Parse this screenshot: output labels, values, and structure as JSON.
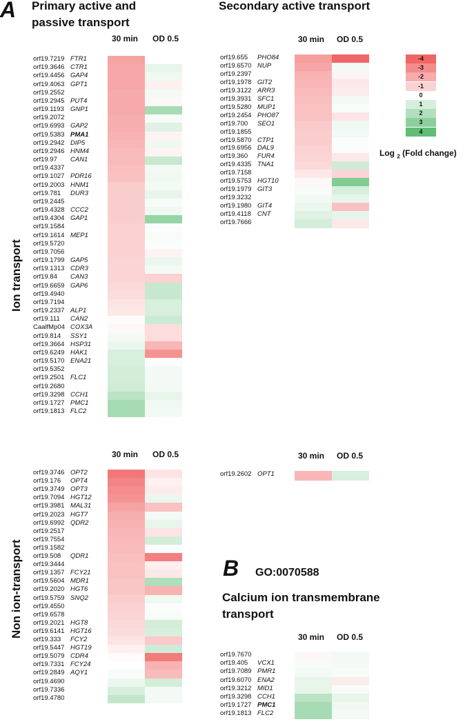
{
  "panel_a_letter": "A",
  "panel_b_letter": "B",
  "title_primary": [
    "Primary active and",
    "passive transport"
  ],
  "title_secondary": "Secondary active transport",
  "go_term": "GO:0070588",
  "title_b": [
    "Calcium ion transmembrane",
    "transport"
  ],
  "side_label_ion": "Ion transport",
  "side_label_nonion": "Non ion-transport",
  "col_30min": "30 min",
  "col_od": "OD 0.5",
  "legend": {
    "title_prefix": "Log",
    "title_sub": "2",
    "title_suffix": "(Fold change)",
    "values": [
      -4,
      -3,
      -2,
      -1,
      0,
      1,
      2,
      3,
      4
    ],
    "colors": [
      "#f06565",
      "#f48c8c",
      "#f7abab",
      "#fbd2d2",
      "#ffffff",
      "#d6eedc",
      "#b2dfbc",
      "#8ccf9a",
      "#5fbd75"
    ]
  },
  "chart_data": [
    {
      "type": "heatmap",
      "title": "Primary active and passive transport",
      "group": "Ion transport",
      "columns": [
        "30 min",
        "OD 0.5"
      ],
      "rows": [
        {
          "orf": "orf19.7219",
          "gene": "FTR1",
          "values": [
            -2.4,
            0.0
          ]
        },
        {
          "orf": "orf19.3646",
          "gene": "CTR1",
          "values": [
            -2.3,
            0.6
          ]
        },
        {
          "orf": "orf19.4456",
          "gene": "GAP4",
          "values": [
            -2.3,
            0.4
          ]
        },
        {
          "orf": "orf19.4063",
          "gene": "GPT1",
          "values": [
            -2.3,
            -0.4
          ]
        },
        {
          "orf": "orf19.2552",
          "gene": "",
          "values": [
            -2.2,
            0.3
          ]
        },
        {
          "orf": "orf19.2945",
          "gene": "PUT4",
          "values": [
            -2.2,
            -0.2
          ]
        },
        {
          "orf": "orf19.1193",
          "gene": "GNP1",
          "values": [
            -2.2,
            2.2
          ]
        },
        {
          "orf": "orf19.2072",
          "gene": "",
          "values": [
            -2.1,
            0.2
          ]
        },
        {
          "orf": "orf19.6993",
          "gene": "GAP2",
          "values": [
            -2.1,
            0.8
          ]
        },
        {
          "orf": "orf19.5383",
          "gene": "PMA1",
          "bold": true,
          "values": [
            -2.0,
            -0.3
          ]
        },
        {
          "orf": "orf19.2942",
          "gene": "DIP5",
          "values": [
            -1.9,
            0.4
          ]
        },
        {
          "orf": "orf19.2946",
          "gene": "HNM4",
          "values": [
            -1.8,
            -0.3
          ]
        },
        {
          "orf": "orf19.97",
          "gene": "CAN1",
          "values": [
            -1.8,
            1.4
          ]
        },
        {
          "orf": "orf19.4337",
          "gene": "",
          "values": [
            -1.7,
            0.3
          ]
        },
        {
          "orf": "orf19.1027",
          "gene": "PDR16",
          "values": [
            -1.6,
            0.4
          ]
        },
        {
          "orf": "orf19.2003",
          "gene": "HNM1",
          "values": [
            -1.3,
            0.3
          ]
        },
        {
          "orf": "orf19.781",
          "gene": "DUR3",
          "values": [
            -1.3,
            0.6
          ]
        },
        {
          "orf": "orf19.2445",
          "gene": "",
          "values": [
            -1.3,
            0.2
          ]
        },
        {
          "orf": "orf19.4328",
          "gene": "CCC2",
          "values": [
            -1.3,
            0.4
          ]
        },
        {
          "orf": "orf19.4304",
          "gene": "GAP1",
          "values": [
            -1.3,
            2.6
          ]
        },
        {
          "orf": "orf19.1584",
          "gene": "",
          "values": [
            -1.2,
            0.1
          ]
        },
        {
          "orf": "orf19.1614",
          "gene": "MEP1",
          "values": [
            -1.2,
            0.2
          ]
        },
        {
          "orf": "orf19.5720",
          "gene": "",
          "values": [
            -1.2,
            0.1
          ]
        },
        {
          "orf": "orf19.7056",
          "gene": "",
          "values": [
            -1.2,
            -0.3
          ]
        },
        {
          "orf": "orf19.1799",
          "gene": "GAP5",
          "values": [
            -1.1,
            0.5
          ]
        },
        {
          "orf": "orf19.1313",
          "gene": "CDR3",
          "values": [
            -1.1,
            0.3
          ]
        },
        {
          "orf": "orf19.84",
          "gene": "CAN3",
          "values": [
            -1.1,
            -1.2
          ]
        },
        {
          "orf": "orf19.6659",
          "gene": "GAP6",
          "values": [
            -1.0,
            1.4
          ]
        },
        {
          "orf": "orf19.4940",
          "gene": "",
          "values": [
            -0.9,
            1.4
          ]
        },
        {
          "orf": "orf19.7194",
          "gene": "",
          "values": [
            -0.7,
            1.0
          ]
        },
        {
          "orf": "orf19.2337",
          "gene": "ALP1",
          "values": [
            -0.6,
            1.0
          ]
        },
        {
          "orf": "orf19.111",
          "gene": "CAN2",
          "values": [
            -0.1,
            1.3
          ]
        },
        {
          "orf": "CaalfMp04",
          "gene": "COX3A",
          "values": [
            -0.2,
            -0.9
          ]
        },
        {
          "orf": "orf19.814",
          "gene": "SSY1",
          "values": [
            0.3,
            -0.9
          ]
        },
        {
          "orf": "orf19.3664",
          "gene": "HSP31",
          "values": [
            0.5,
            -1.9
          ]
        },
        {
          "orf": "orf19.6249",
          "gene": "HAK1",
          "values": [
            1.0,
            -2.8
          ]
        },
        {
          "orf": "orf19.5170",
          "gene": "ENA21",
          "values": [
            1.0,
            0.1
          ]
        },
        {
          "orf": "orf19.5352",
          "gene": "",
          "values": [
            1.1,
            0.3
          ]
        },
        {
          "orf": "orf19.2501",
          "gene": "FLC1",
          "values": [
            1.1,
            0.3
          ]
        },
        {
          "orf": "orf19.2680",
          "gene": "",
          "values": [
            1.2,
            0.3
          ]
        },
        {
          "orf": "orf19.3298",
          "gene": "CCH1",
          "values": [
            1.7,
            0.6
          ]
        },
        {
          "orf": "orf19.1727",
          "gene": "PMC1",
          "values": [
            2.2,
            0.4
          ]
        },
        {
          "orf": "orf19.1813",
          "gene": "FLC2",
          "values": [
            2.2,
            0.3
          ]
        }
      ]
    },
    {
      "type": "heatmap",
      "title": "Secondary active transport",
      "group": "Ion transport",
      "columns": [
        "30 min",
        "OD 0.5"
      ],
      "rows": [
        {
          "orf": "orf19.655",
          "gene": "PHO84",
          "values": [
            -2.5,
            -4.0
          ]
        },
        {
          "orf": "orf19.6570",
          "gene": "NUP",
          "values": [
            -2.3,
            0.3
          ]
        },
        {
          "orf": "orf19.2397",
          "gene": "",
          "values": [
            -2.0,
            -0.3
          ]
        },
        {
          "orf": "orf19.1978",
          "gene": "GIT2",
          "values": [
            -1.9,
            -0.6
          ]
        },
        {
          "orf": "orf19.3122",
          "gene": "ARR3",
          "values": [
            -1.8,
            -0.5
          ]
        },
        {
          "orf": "orf19.3931",
          "gene": "SFC1",
          "values": [
            -1.7,
            0.3
          ]
        },
        {
          "orf": "orf19.5280",
          "gene": "MUP1",
          "values": [
            -1.6,
            0.2
          ]
        },
        {
          "orf": "orf19.2454",
          "gene": "PHO87",
          "values": [
            -1.6,
            -0.7
          ]
        },
        {
          "orf": "orf19.700",
          "gene": "SEO1",
          "values": [
            -1.4,
            0.4
          ]
        },
        {
          "orf": "orf19.1855",
          "gene": "",
          "values": [
            -1.3,
            0.3
          ]
        },
        {
          "orf": "orf19.5870",
          "gene": "CTP1",
          "values": [
            -1.3,
            0.1
          ]
        },
        {
          "orf": "orf19.6956",
          "gene": "DAL9",
          "values": [
            -1.2,
            0.1
          ]
        },
        {
          "orf": "orf19.360",
          "gene": "FUR4",
          "values": [
            -1.1,
            -0.6
          ]
        },
        {
          "orf": "orf19.4335",
          "gene": "TNA1",
          "values": [
            -1.0,
            1.2
          ]
        },
        {
          "orf": "orf19.7158",
          "gene": "",
          "values": [
            -0.6,
            -1.1
          ]
        },
        {
          "orf": "orf19.5753",
          "gene": "HGT10",
          "values": [
            -0.2,
            3.1
          ]
        },
        {
          "orf": "orf19.1979",
          "gene": "GIT3",
          "values": [
            0.2,
            1.0
          ]
        },
        {
          "orf": "orf19.3232",
          "gene": "",
          "values": [
            0.3,
            0.6
          ]
        },
        {
          "orf": "orf19.1980",
          "gene": "GIT4",
          "values": [
            0.5,
            -1.6
          ]
        },
        {
          "orf": "orf19.4118",
          "gene": "CNT",
          "values": [
            0.8,
            0.6
          ]
        },
        {
          "orf": "orf19.7666",
          "gene": "",
          "values": [
            1.1,
            -0.6
          ]
        }
      ]
    },
    {
      "type": "heatmap",
      "title": "Primary active and passive transport",
      "group": "Non ion-transport",
      "columns": [
        "30 min",
        "OD 0.5"
      ],
      "rows": [
        {
          "orf": "orf19.3746",
          "gene": "OPT2",
          "values": [
            -3.5,
            -0.7
          ]
        },
        {
          "orf": "orf19.176",
          "gene": "OPT4",
          "values": [
            -3.2,
            -0.4
          ]
        },
        {
          "orf": "orf19.3749",
          "gene": "OPT3",
          "values": [
            -3.0,
            -0.5
          ]
        },
        {
          "orf": "orf19.7094",
          "gene": "HGT12",
          "values": [
            -2.8,
            0.5
          ]
        },
        {
          "orf": "orf19.3981",
          "gene": "MAL31",
          "values": [
            -2.4,
            -1.6
          ]
        },
        {
          "orf": "orf19.2023",
          "gene": "HGT7",
          "values": [
            -2.1,
            0.3
          ]
        },
        {
          "orf": "orf19.6992",
          "gene": "QDR2",
          "values": [
            -2.0,
            0.6
          ]
        },
        {
          "orf": "orf19.2517",
          "gene": "",
          "values": [
            -1.9,
            -0.7
          ]
        },
        {
          "orf": "orf19.7554",
          "gene": "",
          "values": [
            -1.8,
            1.1
          ]
        },
        {
          "orf": "orf19.1582",
          "gene": "",
          "values": [
            -1.8,
            0.1
          ]
        },
        {
          "orf": "orf19.508",
          "gene": "QDR1",
          "values": [
            -1.7,
            -3.3
          ]
        },
        {
          "orf": "orf19.3444",
          "gene": "",
          "values": [
            -1.6,
            -0.4
          ]
        },
        {
          "orf": "orf19.1357",
          "gene": "FCY21",
          "values": [
            -1.6,
            -0.6
          ]
        },
        {
          "orf": "orf19.5604",
          "gene": "MDR1",
          "values": [
            -1.5,
            2.0
          ]
        },
        {
          "orf": "orf19.2020",
          "gene": "HGT6",
          "values": [
            -1.5,
            -2.0
          ]
        },
        {
          "orf": "orf19.5759",
          "gene": "SNQ2",
          "values": [
            -1.3,
            0.4
          ]
        },
        {
          "orf": "orf19.4550",
          "gene": "",
          "values": [
            -1.2,
            0.1
          ]
        },
        {
          "orf": "orf19.6578",
          "gene": "",
          "values": [
            -1.1,
            0.2
          ]
        },
        {
          "orf": "orf19.2021",
          "gene": "HGT8",
          "values": [
            -1.0,
            1.1
          ]
        },
        {
          "orf": "orf19.6141",
          "gene": "HGT16",
          "values": [
            -0.9,
            1.0
          ]
        },
        {
          "orf": "orf19.333",
          "gene": "FCY2",
          "values": [
            -0.7,
            -1.4
          ]
        },
        {
          "orf": "orf19.5447",
          "gene": "HGT19",
          "values": [
            -0.4,
            1.2
          ]
        },
        {
          "orf": "orf19.5079",
          "gene": "CDR4",
          "values": [
            -0.1,
            -3.4
          ]
        },
        {
          "orf": "orf19.7331",
          "gene": "FCY24",
          "values": [
            0.0,
            -2.0
          ]
        },
        {
          "orf": "orf19.2849",
          "gene": "AQY1",
          "values": [
            0.2,
            -1.8
          ]
        },
        {
          "orf": "orf19.4690",
          "gene": "",
          "values": [
            0.5,
            1.1
          ]
        },
        {
          "orf": "orf19.7336",
          "gene": "",
          "values": [
            1.0,
            0.3
          ]
        },
        {
          "orf": "orf19.4780",
          "gene": "",
          "values": [
            1.5,
            0.3
          ]
        }
      ]
    },
    {
      "type": "heatmap",
      "title": "Secondary active transport",
      "group": "Non ion-transport",
      "columns": [
        "30 min",
        "OD 0.5"
      ],
      "rows": [
        {
          "orf": "orf19.2602",
          "gene": "OPT1",
          "values": [
            -1.9,
            1.0
          ]
        }
      ]
    },
    {
      "type": "heatmap",
      "title": "Calcium ion transmembrane transport",
      "subtitle": "GO:0070588",
      "columns": [
        "30 min",
        "OD 0.5"
      ],
      "rows": [
        {
          "orf": "orf19.7670",
          "gene": "",
          "values": [
            -0.2,
            0.3
          ]
        },
        {
          "orf": "orf19.405",
          "gene": "VCX1",
          "values": [
            0.2,
            0.3
          ]
        },
        {
          "orf": "orf19.7089",
          "gene": "PMR1",
          "values": [
            0.3,
            0.2
          ]
        },
        {
          "orf": "orf19.6070",
          "gene": "ENA2",
          "values": [
            0.6,
            -0.5
          ]
        },
        {
          "orf": "orf19.3212",
          "gene": "MID1",
          "values": [
            0.6,
            0.2
          ]
        },
        {
          "orf": "orf19.3298",
          "gene": "CCH1",
          "values": [
            1.7,
            0.6
          ]
        },
        {
          "orf": "orf19.1727",
          "gene": "PMC1",
          "bold": true,
          "values": [
            2.2,
            0.4
          ]
        },
        {
          "orf": "orf19.1813",
          "gene": "FLC2",
          "values": [
            2.2,
            0.3
          ]
        }
      ]
    }
  ]
}
